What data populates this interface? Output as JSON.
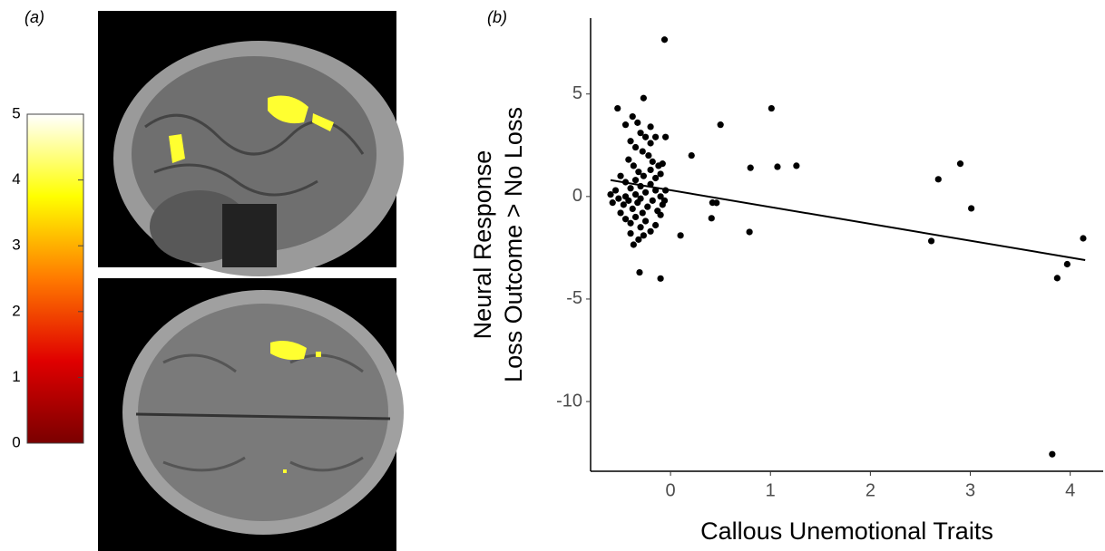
{
  "chart_data": [
    {
      "type": "colorbar",
      "label": "(a)",
      "ylim": [
        0,
        5
      ],
      "yticks": [
        0,
        1,
        2,
        3,
        4,
        5
      ],
      "colors": [
        "#7a0000",
        "#e00000",
        "#ff7a00",
        "#ffff00",
        "#ffffff"
      ]
    },
    {
      "type": "scatter",
      "label": "(b)",
      "x_label": "Callous Unemotional Traits",
      "y_label": [
        "Neural Response",
        "Loss Outcome > No Loss"
      ],
      "xlim": [
        -0.8,
        4.33
      ],
      "ylim": [
        -13.4,
        8.7
      ],
      "xticks": [
        0,
        1,
        2,
        3,
        4
      ],
      "yticks": [
        -10,
        -5,
        0,
        5
      ],
      "color": "#000000",
      "x": [
        -0.06,
        -0.27,
        -0.53,
        1.01,
        0.5,
        0.21,
        2.9,
        0.8,
        1.07,
        1.26,
        2.68,
        3.01,
        0.46,
        0.42,
        0.41,
        0.79,
        0.1,
        2.61,
        4.13,
        3.97,
        3.87,
        3.82,
        -0.1,
        -0.31,
        -0.37,
        -0.45,
        -0.38,
        -0.33,
        -0.3,
        -0.25,
        -0.2,
        -0.15,
        -0.4,
        -0.35,
        -0.28,
        -0.22,
        -0.18,
        -0.12,
        -0.42,
        -0.37,
        -0.32,
        -0.27,
        -0.2,
        -0.15,
        -0.1,
        -0.5,
        -0.45,
        -0.4,
        -0.35,
        -0.3,
        -0.25,
        -0.2,
        -0.15,
        -0.1,
        -0.55,
        -0.6,
        -0.58,
        -0.52,
        -0.47,
        -0.42,
        -0.38,
        -0.33,
        -0.28,
        -0.23,
        -0.18,
        -0.13,
        -0.08,
        -0.5,
        -0.45,
        -0.4,
        -0.35,
        -0.3,
        -0.25,
        -0.2,
        -0.15,
        -0.1,
        -0.4,
        -0.32,
        -0.27,
        -0.05,
        -0.06,
        -0.08,
        -0.05,
        -0.2,
        -0.45,
        -0.3,
        -0.35
      ],
      "y": [
        7.65,
        4.8,
        4.3,
        4.3,
        3.5,
        2.0,
        1.6,
        1.4,
        1.45,
        1.5,
        0.84,
        -0.58,
        -0.31,
        -0.3,
        -1.06,
        -1.73,
        -1.9,
        -2.17,
        -2.04,
        -3.3,
        -3.98,
        -12.57,
        -4.0,
        -3.7,
        -2.35,
        3.5,
        3.9,
        3.6,
        3.1,
        2.9,
        2.6,
        2.9,
        2.7,
        2.4,
        2.2,
        2.0,
        1.7,
        1.5,
        1.8,
        1.5,
        1.2,
        1.0,
        1.3,
        0.9,
        1.1,
        1.0,
        0.7,
        0.4,
        0.8,
        0.5,
        0.2,
        0.6,
        0.3,
        0.0,
        0.3,
        0.1,
        -0.3,
        -0.1,
        -0.4,
        -0.2,
        -0.6,
        -0.3,
        -0.8,
        -0.5,
        -0.2,
        -0.7,
        -0.4,
        -0.8,
        -1.1,
        -1.3,
        -1.0,
        -1.5,
        -1.2,
        -1.7,
        -1.4,
        -0.9,
        -1.8,
        -2.1,
        -1.9,
        0.3,
        -0.2,
        1.6,
        2.9,
        3.4,
        0.0,
        -0.1,
        0.1
      ],
      "trend_line": {
        "x": [
          -0.6,
          4.15
        ],
        "y": [
          0.8,
          -3.1
        ]
      }
    }
  ]
}
